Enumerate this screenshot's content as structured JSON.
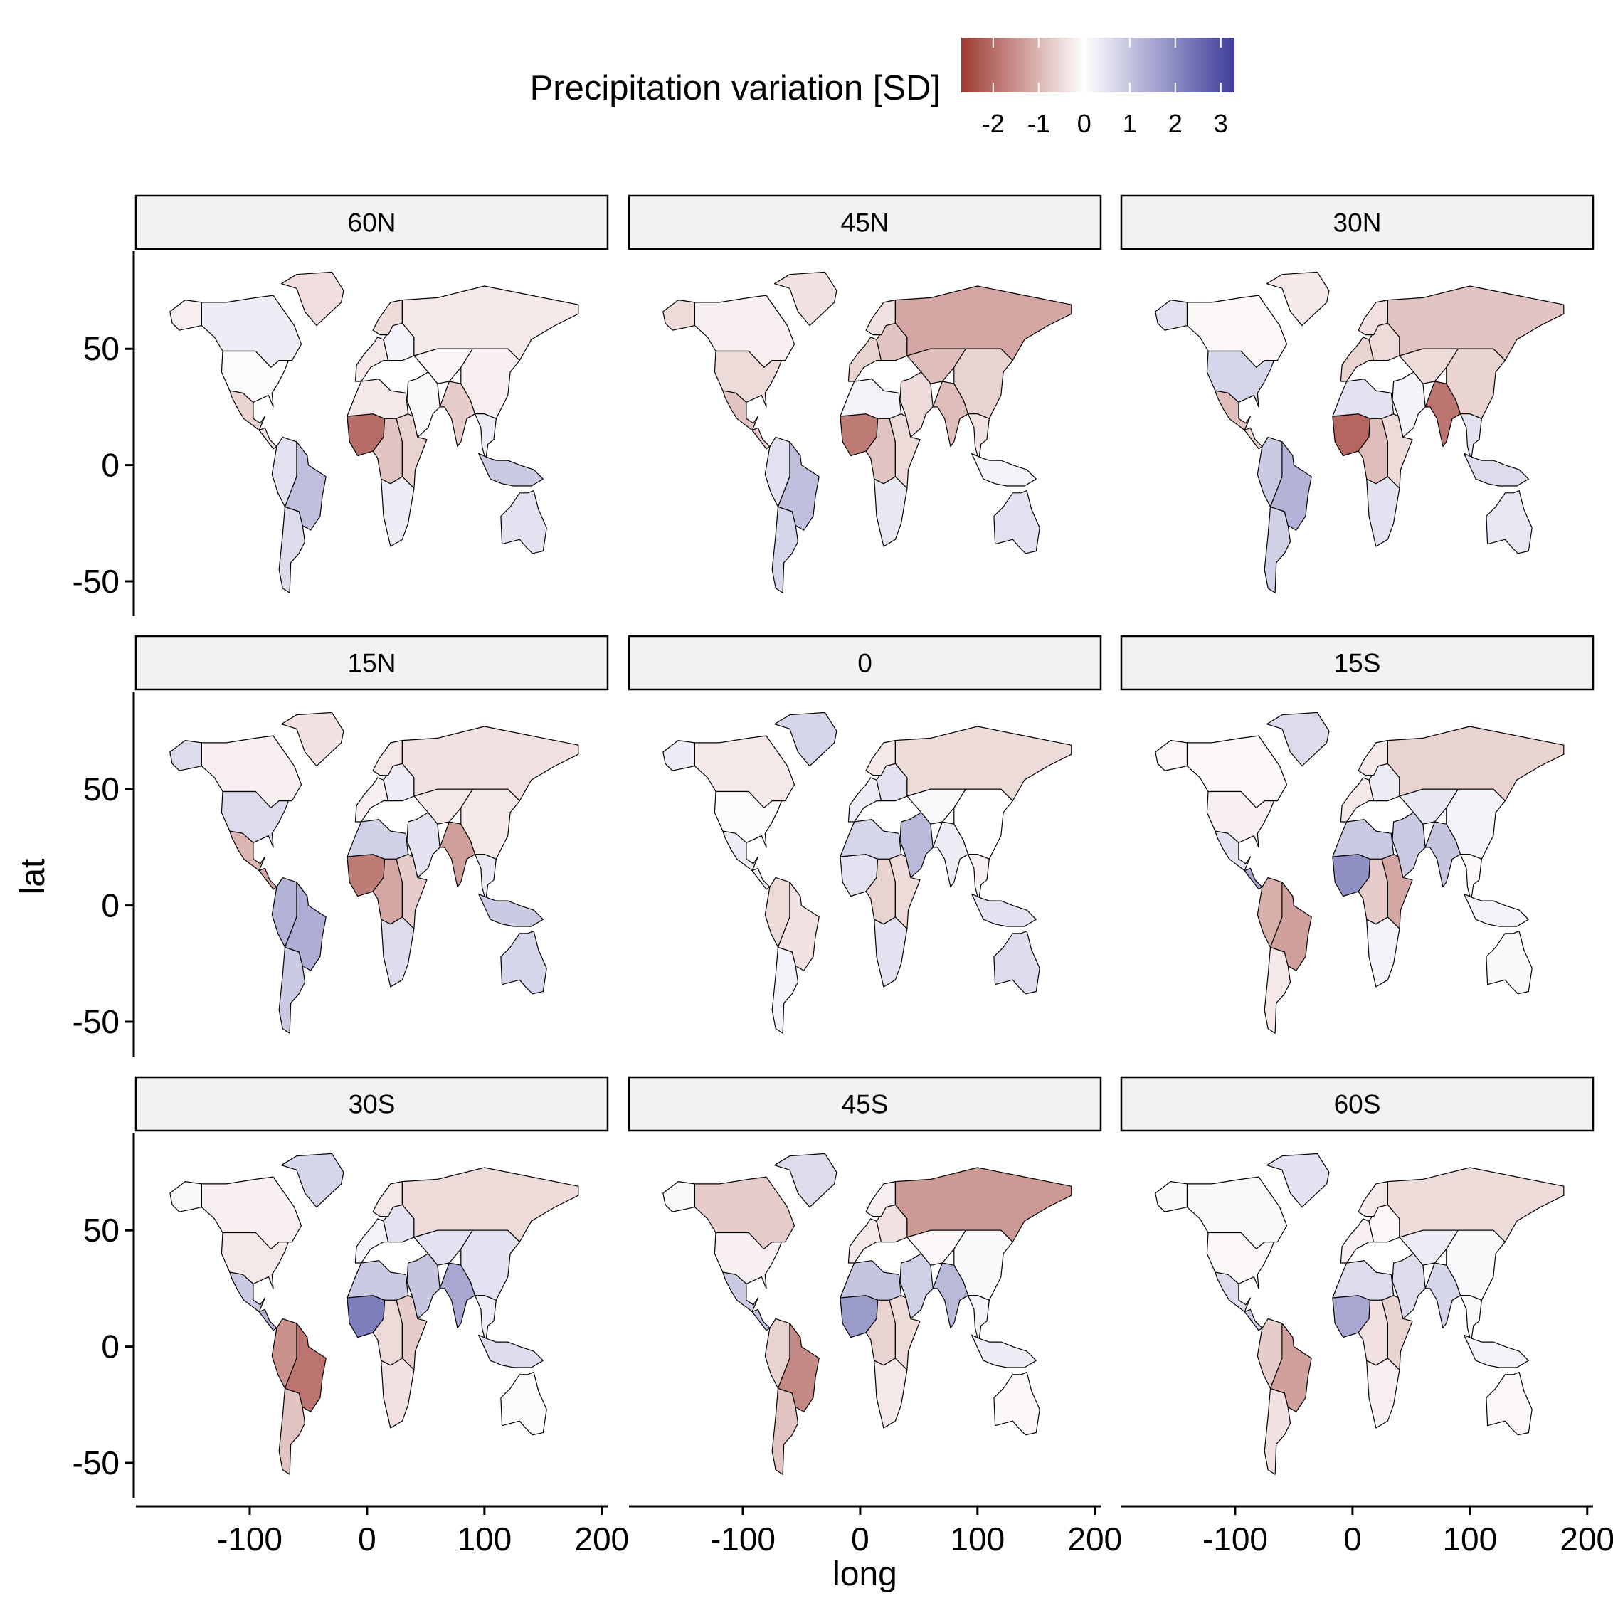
{
  "chart_data": {
    "type": "heatmap",
    "subtype": "faceted choropleth world maps",
    "legend": {
      "title": "Precipitation variation [SD]",
      "placement": "top",
      "ticks": [
        -2,
        -1,
        0,
        1,
        2,
        3
      ],
      "tick_labels": [
        "-2",
        "-1",
        "0",
        "1",
        "2",
        "3"
      ],
      "limits": [
        -2.7,
        3.3
      ],
      "low_color": "#9e3a32",
      "mid_color": "#ffffff",
      "high_color": "#3f3e9a"
    },
    "x_axis": {
      "label": "long",
      "ticks": [
        -100,
        0,
        100,
        200
      ],
      "tick_labels": [
        "-100",
        "0",
        "100",
        "200"
      ],
      "range": [
        -197,
        205
      ]
    },
    "y_axis": {
      "label": "lat",
      "ticks": [
        -50,
        0,
        50
      ],
      "tick_labels": [
        "-50",
        "0",
        "50"
      ],
      "range": [
        -65,
        92
      ]
    },
    "grid": false,
    "region_order": [
      "canada",
      "alaska",
      "usa",
      "mexico",
      "central_america",
      "south_america",
      "brazil",
      "southern_cone",
      "greenland",
      "western_europe",
      "eastern_europe",
      "scandinavia",
      "russia",
      "central_asia",
      "middle_east",
      "sahel_west",
      "north_africa",
      "central_africa",
      "east_africa",
      "southern_africa",
      "india",
      "china",
      "southeast_asia",
      "indonesia",
      "australia"
    ],
    "facets": [
      {
        "label": "60N",
        "values": [
          0.3,
          -0.2,
          0.05,
          -0.6,
          -0.4,
          0.5,
          1.1,
          0.6,
          -0.45,
          -0.3,
          0.2,
          -0.5,
          -0.3,
          -0.15,
          0.1,
          -2.0,
          -0.3,
          -0.8,
          -0.6,
          0.3,
          -0.7,
          -0.2,
          0.3,
          0.9,
          0.5
        ]
      },
      {
        "label": "45N",
        "values": [
          -0.2,
          -0.5,
          -0.5,
          -0.8,
          -0.7,
          0.5,
          1.1,
          0.7,
          -0.4,
          -0.6,
          -0.8,
          -0.4,
          -1.2,
          -0.9,
          -0.5,
          -1.8,
          0.2,
          -0.8,
          -0.5,
          0.4,
          -0.9,
          -0.6,
          -0.4,
          0.2,
          0.5
        ]
      },
      {
        "label": "30N",
        "values": [
          -0.1,
          0.5,
          0.7,
          -0.9,
          -0.6,
          0.9,
          1.3,
          0.8,
          -0.3,
          -0.6,
          -0.5,
          -0.4,
          -0.8,
          -0.5,
          0.2,
          -2.1,
          0.5,
          -0.9,
          -0.5,
          0.5,
          -1.9,
          -0.6,
          0.5,
          0.6,
          0.4
        ]
      },
      {
        "label": "15N",
        "values": [
          -0.2,
          0.6,
          0.6,
          -1.0,
          -1.2,
          1.3,
          1.4,
          0.9,
          -0.4,
          -0.2,
          0.3,
          -0.3,
          -0.4,
          -0.3,
          0.5,
          -1.8,
          0.8,
          -1.2,
          -0.7,
          0.6,
          -1.3,
          -0.3,
          0.4,
          0.9,
          0.7
        ]
      },
      {
        "label": "0",
        "values": [
          -0.3,
          0.3,
          0.05,
          0.3,
          0.3,
          -0.5,
          -0.4,
          0.2,
          0.7,
          0.3,
          0.5,
          -0.3,
          -0.5,
          0.1,
          1.2,
          0.5,
          0.7,
          -0.6,
          -0.5,
          0.5,
          0.3,
          0.0,
          -0.2,
          0.5,
          0.6
        ]
      },
      {
        "label": "15S",
        "values": [
          -0.1,
          -0.1,
          -0.2,
          0.5,
          1.5,
          -1.1,
          -1.3,
          -0.3,
          0.6,
          -0.3,
          0.3,
          -0.3,
          -0.6,
          0.4,
          0.9,
          1.9,
          0.9,
          -0.7,
          -1.2,
          0.2,
          1.0,
          0.2,
          -0.1,
          0.2,
          0.1
        ]
      },
      {
        "label": "30S",
        "values": [
          -0.2,
          0.1,
          -0.3,
          0.9,
          1.3,
          -1.5,
          -1.9,
          -0.8,
          0.7,
          0.2,
          0.5,
          -0.3,
          -0.5,
          0.5,
          1.0,
          2.2,
          0.9,
          -0.5,
          -0.7,
          -0.4,
          1.5,
          0.5,
          0.3,
          0.6,
          0.05
        ]
      },
      {
        "label": "45S",
        "values": [
          -0.7,
          0.1,
          -0.2,
          0.9,
          1.1,
          -0.6,
          -1.6,
          -0.8,
          0.6,
          -0.3,
          -0.4,
          -0.2,
          -1.4,
          -0.1,
          0.8,
          1.7,
          1.0,
          -0.6,
          -0.5,
          -0.3,
          1.2,
          0.1,
          0.2,
          0.3,
          -0.1
        ]
      },
      {
        "label": "60S",
        "values": [
          0.1,
          0.1,
          -0.1,
          0.6,
          0.9,
          -0.7,
          -1.3,
          -0.4,
          0.5,
          -0.2,
          -0.1,
          -0.3,
          -0.5,
          0.3,
          0.6,
          1.5,
          0.6,
          -0.4,
          -0.6,
          -0.2,
          0.7,
          0.1,
          0.1,
          0.2,
          -0.1
        ]
      }
    ]
  }
}
